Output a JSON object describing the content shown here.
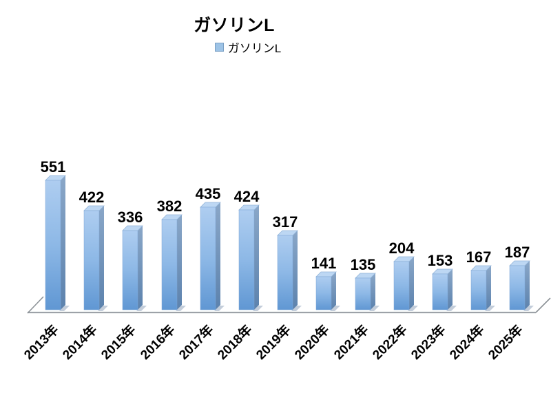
{
  "page": {
    "background": "#ffffff"
  },
  "title": {
    "text": "ガソリンL"
  },
  "legend": {
    "position": "top-center",
    "items": [
      {
        "label": "ガソリンL",
        "swatch_color": "#9dc3e6"
      }
    ]
  },
  "chart_data": {
    "type": "bar",
    "style": "3d-column",
    "title": "ガソリンL",
    "categories": [
      "2013年",
      "2014年",
      "2015年",
      "2016年",
      "2017年",
      "2018年",
      "2019年",
      "2020年",
      "2021年",
      "2022年",
      "2023年",
      "2024年",
      "2025年"
    ],
    "series": [
      {
        "name": "ガソリンL",
        "values": [
          551,
          422,
          336,
          382,
          435,
          424,
          317,
          141,
          135,
          204,
          153,
          167,
          187
        ]
      }
    ],
    "data_labels_shown": true,
    "value_axis_visible": false,
    "grid": false,
    "ylim": [
      0,
      600
    ],
    "xlabel": "",
    "ylabel": "",
    "legend_position": "top",
    "colors": {
      "bar_front_top": "#aecdf0",
      "bar_front_mid": "#8db8e6",
      "bar_front_bottom": "#6097d3",
      "bar_side_top": "#8aa7c8",
      "bar_side_bottom": "#5c82ad",
      "bar_top_face": "#bdd7f3",
      "bar_top_stroke": "#93b4d9",
      "bar_front_stroke": "#7fa6d6",
      "base_shadow": "#a3b2c6",
      "floor_front_line": "#9da2a8",
      "floor_diagonal": "#8b9196",
      "label_color": "#000000"
    }
  }
}
